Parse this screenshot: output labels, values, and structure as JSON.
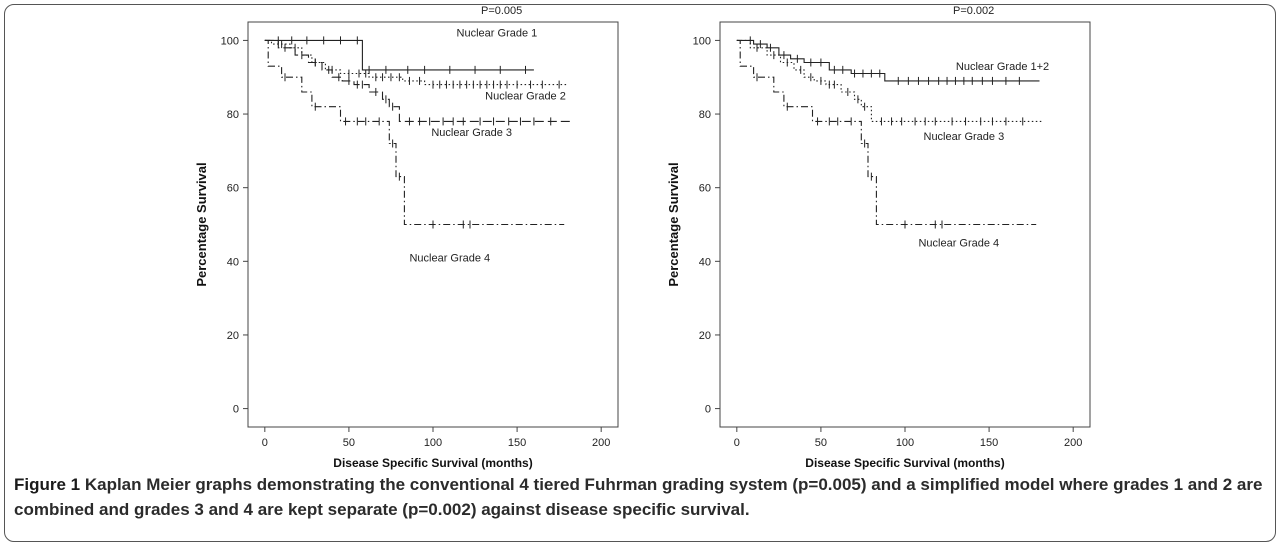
{
  "caption": {
    "label": "Figure 1",
    "text": " Kaplan Meier graphs demonstrating the conventional 4 tiered Fuhrman grading system (p=0.005) and a simplified model where grades 1 and 2 are combined and grades 3 and 4 are kept separate (p=0.002) against disease specific survival."
  },
  "chart_data": [
    {
      "type": "line",
      "title": "P=0.005",
      "xlabel": "Disease Specific Survival (months)",
      "ylabel": "Percentage Survival",
      "xlim": [
        -10,
        210
      ],
      "ylim": [
        -5,
        105
      ],
      "x_ticks": [
        0,
        50,
        100,
        150,
        200
      ],
      "y_ticks": [
        0,
        20,
        40,
        60,
        80,
        100
      ],
      "series": [
        {
          "name": "Nuclear Grade 1",
          "style": "solid",
          "steps": [
            [
              0,
              100
            ],
            [
              58,
              100
            ],
            [
              58,
              92
            ],
            [
              160,
              92
            ]
          ],
          "censor": [
            8,
            16,
            25,
            35,
            45,
            55,
            62,
            72,
            85,
            95,
            110,
            125,
            140,
            155
          ]
        },
        {
          "name": "Nuclear Grade 2",
          "style": "dotted",
          "steps": [
            [
              0,
              100
            ],
            [
              4,
              100
            ],
            [
              4,
              99
            ],
            [
              15,
              99
            ],
            [
              15,
              98
            ],
            [
              22,
              98
            ],
            [
              22,
              96
            ],
            [
              28,
              96
            ],
            [
              28,
              94
            ],
            [
              36,
              94
            ],
            [
              36,
              92
            ],
            [
              45,
              92
            ],
            [
              45,
              91
            ],
            [
              62,
              91
            ],
            [
              62,
              90
            ],
            [
              82,
              90
            ],
            [
              82,
              89
            ],
            [
              95,
              89
            ],
            [
              95,
              88
            ],
            [
              180,
              88
            ]
          ],
          "censor": [
            10,
            18,
            30,
            40,
            50,
            56,
            60,
            66,
            70,
            75,
            80,
            86,
            92,
            100,
            104,
            108,
            112,
            116,
            120,
            124,
            128,
            132,
            136,
            140,
            144,
            150,
            158,
            165,
            175
          ]
        },
        {
          "name": "Nuclear Grade 3",
          "style": "longdash",
          "steps": [
            [
              0,
              100
            ],
            [
              8,
              100
            ],
            [
              8,
              98
            ],
            [
              18,
              98
            ],
            [
              18,
              96
            ],
            [
              26,
              96
            ],
            [
              26,
              94
            ],
            [
              34,
              94
            ],
            [
              34,
              92
            ],
            [
              40,
              92
            ],
            [
              40,
              90
            ],
            [
              46,
              90
            ],
            [
              46,
              89
            ],
            [
              53,
              89
            ],
            [
              53,
              88
            ],
            [
              62,
              88
            ],
            [
              62,
              86
            ],
            [
              70,
              86
            ],
            [
              70,
              84
            ],
            [
              74,
              84
            ],
            [
              74,
              82
            ],
            [
              80,
              82
            ],
            [
              80,
              78
            ],
            [
              182,
              78
            ]
          ],
          "censor": [
            12,
            22,
            30,
            38,
            44,
            50,
            55,
            58,
            66,
            72,
            76,
            86,
            92,
            98,
            106,
            112,
            118,
            128,
            136,
            145,
            152,
            160,
            170
          ]
        },
        {
          "name": "Nuclear Grade 4",
          "style": "dashdot",
          "steps": [
            [
              0,
              100
            ],
            [
              2,
              100
            ],
            [
              2,
              93
            ],
            [
              10,
              93
            ],
            [
              10,
              90
            ],
            [
              22,
              90
            ],
            [
              22,
              86
            ],
            [
              28,
              86
            ],
            [
              28,
              82
            ],
            [
              45,
              82
            ],
            [
              45,
              78
            ],
            [
              74,
              78
            ],
            [
              74,
              72
            ],
            [
              78,
              72
            ],
            [
              78,
              63
            ],
            [
              83,
              63
            ],
            [
              83,
              50
            ],
            [
              178,
              50
            ]
          ],
          "censor": [
            12,
            30,
            48,
            55,
            60,
            68,
            76,
            80,
            100,
            118,
            122
          ]
        }
      ],
      "annotations": [
        {
          "text": "Nuclear Grade 1",
          "x": 138,
          "y": 101
        },
        {
          "text": "Nuclear Grade 2",
          "x": 155,
          "y": 84
        },
        {
          "text": "Nuclear Grade 3",
          "x": 123,
          "y": 74
        },
        {
          "text": "Nuclear Grade 4",
          "x": 110,
          "y": 40
        }
      ]
    },
    {
      "type": "line",
      "title": "P=0.002",
      "xlabel": "Disease Specific Survival (months)",
      "ylabel": "Percentage Survival",
      "xlim": [
        -10,
        210
      ],
      "ylim": [
        -5,
        105
      ],
      "x_ticks": [
        0,
        50,
        100,
        150,
        200
      ],
      "y_ticks": [
        0,
        20,
        40,
        60,
        80,
        100
      ],
      "series": [
        {
          "name": "Nuclear Grade 1+2",
          "style": "solid",
          "steps": [
            [
              0,
              100
            ],
            [
              10,
              100
            ],
            [
              10,
              99
            ],
            [
              18,
              99
            ],
            [
              18,
              98
            ],
            [
              25,
              98
            ],
            [
              25,
              96
            ],
            [
              32,
              96
            ],
            [
              32,
              95
            ],
            [
              40,
              95
            ],
            [
              40,
              94
            ],
            [
              55,
              94
            ],
            [
              55,
              92
            ],
            [
              68,
              92
            ],
            [
              68,
              91
            ],
            [
              88,
              91
            ],
            [
              88,
              89
            ],
            [
              180,
              89
            ]
          ],
          "censor": [
            8,
            14,
            20,
            28,
            36,
            44,
            50,
            58,
            63,
            70,
            75,
            80,
            85,
            96,
            102,
            108,
            114,
            120,
            125,
            130,
            135,
            140,
            146,
            152,
            160,
            168
          ]
        },
        {
          "name": "Nuclear Grade 3",
          "style": "dotted",
          "steps": [
            [
              0,
              100
            ],
            [
              8,
              100
            ],
            [
              8,
              98
            ],
            [
              18,
              98
            ],
            [
              18,
              96
            ],
            [
              26,
              96
            ],
            [
              26,
              94
            ],
            [
              34,
              94
            ],
            [
              34,
              92
            ],
            [
              40,
              92
            ],
            [
              40,
              90
            ],
            [
              46,
              90
            ],
            [
              46,
              89
            ],
            [
              53,
              89
            ],
            [
              53,
              88
            ],
            [
              62,
              88
            ],
            [
              62,
              86
            ],
            [
              70,
              86
            ],
            [
              70,
              84
            ],
            [
              74,
              84
            ],
            [
              74,
              82
            ],
            [
              80,
              82
            ],
            [
              80,
              78
            ],
            [
              182,
              78
            ]
          ],
          "censor": [
            12,
            22,
            30,
            38,
            44,
            50,
            55,
            58,
            66,
            72,
            76,
            86,
            92,
            98,
            106,
            112,
            118,
            128,
            136,
            145,
            152,
            160,
            170
          ]
        },
        {
          "name": "Nuclear Grade 4",
          "style": "dashdot",
          "steps": [
            [
              0,
              100
            ],
            [
              2,
              100
            ],
            [
              2,
              93
            ],
            [
              10,
              93
            ],
            [
              10,
              90
            ],
            [
              22,
              90
            ],
            [
              22,
              86
            ],
            [
              28,
              86
            ],
            [
              28,
              82
            ],
            [
              45,
              82
            ],
            [
              45,
              78
            ],
            [
              74,
              78
            ],
            [
              74,
              72
            ],
            [
              78,
              72
            ],
            [
              78,
              63
            ],
            [
              83,
              63
            ],
            [
              83,
              50
            ],
            [
              178,
              50
            ]
          ],
          "censor": [
            12,
            30,
            48,
            55,
            60,
            68,
            76,
            80,
            100,
            118,
            122
          ]
        }
      ],
      "annotations": [
        {
          "text": "Nuclear Grade 1+2",
          "x": 158,
          "y": 92
        },
        {
          "text": "Nuclear Grade 3",
          "x": 135,
          "y": 73
        },
        {
          "text": "Nuclear Grade 4",
          "x": 132,
          "y": 44
        }
      ]
    }
  ]
}
